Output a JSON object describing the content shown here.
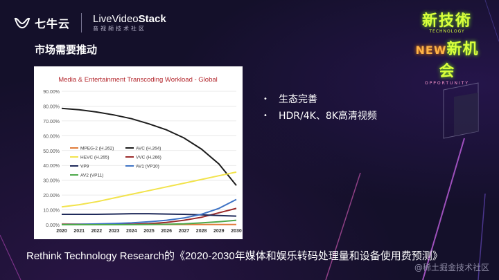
{
  "header": {
    "qiniu_logo_text": "七牛云",
    "livevideostack_title_prefix": "LiveVideo",
    "livevideostack_title_bold": "Stack",
    "livevideostack_subtitle": "音视频技术社区"
  },
  "badge": {
    "line1": "新技術",
    "new_text": "NEW",
    "line2": "新机会",
    "tag1": "TECHNOLOGY",
    "tag2": "OPPORTUNITY"
  },
  "slide_title": "市场需要推动",
  "bullets": [
    "生态完善",
    "HDR/4K、8K高清视频"
  ],
  "caption": "Rethink Technology Research的《2020-2030年媒体和娱乐转码处理量和设备使用费预测》",
  "watermark": "@稀土掘金技术社区",
  "chart_data": {
    "type": "line",
    "title": "Media & Entertainment Transcoding Workload - Global",
    "x": [
      2020,
      2021,
      2022,
      2023,
      2024,
      2025,
      2026,
      2027,
      2028,
      2029,
      2030
    ],
    "y_ticks": [
      "0.00%",
      "10.00%",
      "20.00%",
      "30.00%",
      "40.00%",
      "50.00%",
      "60.00%",
      "70.00%",
      "80.00%",
      "90.00%"
    ],
    "ylim": [
      0,
      90
    ],
    "grid": true,
    "legend_position": "middle-left",
    "series": [
      {
        "name": "MPEG-2 (H.262)",
        "color": "#e07b39",
        "values": [
          0.5,
          0.4,
          0.3,
          0.3,
          0.2,
          0.2,
          0.1,
          0.1,
          0.1,
          0.1,
          0.1
        ]
      },
      {
        "name": "AVC (H.264)",
        "color": "#1c1c1c",
        "values": [
          78.5,
          77.5,
          76,
          74,
          71.5,
          68,
          64,
          58.5,
          51,
          41,
          26.5
        ]
      },
      {
        "name": "HEVC (H.265)",
        "color": "#f2e34c",
        "values": [
          12,
          13.5,
          15.5,
          18,
          20.5,
          23,
          25.5,
          28,
          30.5,
          33,
          35.5
        ]
      },
      {
        "name": "VVC (H.266)",
        "color": "#9b2b2b",
        "values": [
          0,
          0,
          0,
          0.1,
          0.3,
          0.7,
          1.5,
          3,
          5,
          8,
          11
        ]
      },
      {
        "name": "VP9",
        "color": "#1f2a5a",
        "values": [
          7,
          7,
          7,
          7.2,
          7.4,
          7.4,
          7.2,
          7,
          6.6,
          6.2,
          5.8
        ]
      },
      {
        "name": "AV1 (VP10)",
        "color": "#3e73c5",
        "values": [
          0.2,
          0.3,
          0.5,
          0.8,
          1.2,
          2,
          3,
          4.5,
          7,
          11,
          17
        ]
      },
      {
        "name": "AV2 (VP11)",
        "color": "#4da84a",
        "values": [
          0,
          0,
          0,
          0,
          0,
          0.1,
          0.3,
          0.6,
          1.2,
          2,
          3
        ]
      }
    ]
  }
}
